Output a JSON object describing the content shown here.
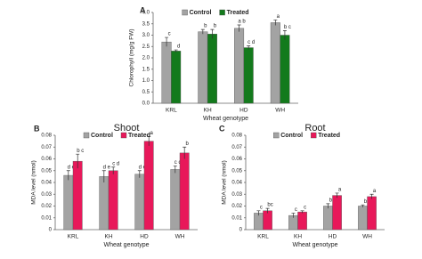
{
  "chart_data": [
    {
      "type": "bar",
      "panel": "A",
      "ylabel": "Chlorophyll (mg/g FW)",
      "xlabel": "Wheat genotype",
      "categories": [
        "KRL",
        "KH",
        "HD",
        "WH"
      ],
      "series": [
        {
          "name": "Control",
          "color": "#a3a3a3",
          "values": [
            2.7,
            3.15,
            3.3,
            3.55
          ],
          "errors": [
            0.2,
            0.1,
            0.15,
            0.12
          ],
          "annotations": [
            "c",
            "b",
            "a b",
            "a"
          ]
        },
        {
          "name": "Treated",
          "color": "#137a1c",
          "values": [
            2.3,
            3.05,
            2.45,
            3.0
          ],
          "errors": [
            0.05,
            0.2,
            0.08,
            0.2
          ],
          "annotations": [
            "d",
            "b",
            "c d",
            "b c"
          ]
        }
      ],
      "ylim": [
        0,
        4
      ],
      "yticks": [
        {
          "value": 0,
          "label": "0.0"
        },
        {
          "value": 0.5,
          "label": "0.5"
        },
        {
          "value": 1,
          "label": "1.0"
        },
        {
          "value": 1.5,
          "label": "1.5"
        },
        {
          "value": 2,
          "label": "2.0"
        },
        {
          "value": 2.5,
          "label": "2.5"
        },
        {
          "value": 3,
          "label": "3.0"
        },
        {
          "value": 3.5,
          "label": "3.5"
        },
        {
          "value": 4,
          "label": "4.0"
        }
      ]
    },
    {
      "type": "bar",
      "panel": "B",
      "title": "Shoot",
      "ylabel": "MDA level (nmol)",
      "xlabel": "Wheat genotype",
      "categories": [
        "KRL",
        "KH",
        "HD",
        "WH"
      ],
      "series": [
        {
          "name": "Control",
          "color": "#a3a3a3",
          "values": [
            0.046,
            0.045,
            0.047,
            0.051
          ],
          "errors": [
            0.004,
            0.005,
            0.003,
            0.003
          ],
          "annotations": [
            "d e",
            "d e",
            "d e",
            "c d"
          ]
        },
        {
          "name": "Treated",
          "color": "#e8185a",
          "values": [
            0.058,
            0.05,
            0.075,
            0.065
          ],
          "errors": [
            0.006,
            0.003,
            0.004,
            0.005
          ],
          "annotations": [
            "b c",
            "c d",
            "a",
            "b"
          ]
        }
      ],
      "ylim": [
        0,
        0.08
      ],
      "yticks": [
        0,
        0.01,
        0.02,
        0.03,
        0.04,
        0.05,
        0.06,
        0.07,
        0.08
      ]
    },
    {
      "type": "bar",
      "panel": "C",
      "title": "Root",
      "ylabel": "MDA level (nmol)",
      "xlabel": "Wheat genotype",
      "categories": [
        "KRL",
        "KH",
        "HD",
        "WH"
      ],
      "series": [
        {
          "name": "Control",
          "color": "#a3a3a3",
          "values": [
            0.014,
            0.012,
            0.02,
            0.02
          ],
          "errors": [
            0.002,
            0.002,
            0.002,
            0.001
          ],
          "annotations": [
            "c",
            "c",
            "b",
            "b"
          ]
        },
        {
          "name": "Treated",
          "color": "#e8185a",
          "values": [
            0.016,
            0.015,
            0.029,
            0.028
          ],
          "errors": [
            0.002,
            0.001,
            0.002,
            0.002
          ],
          "annotations": [
            "bc",
            "c",
            "a",
            "a"
          ]
        }
      ],
      "ylim": [
        0,
        0.08
      ],
      "yticks": [
        0,
        0.01,
        0.02,
        0.03,
        0.04,
        0.05,
        0.06,
        0.07,
        0.08
      ]
    }
  ]
}
